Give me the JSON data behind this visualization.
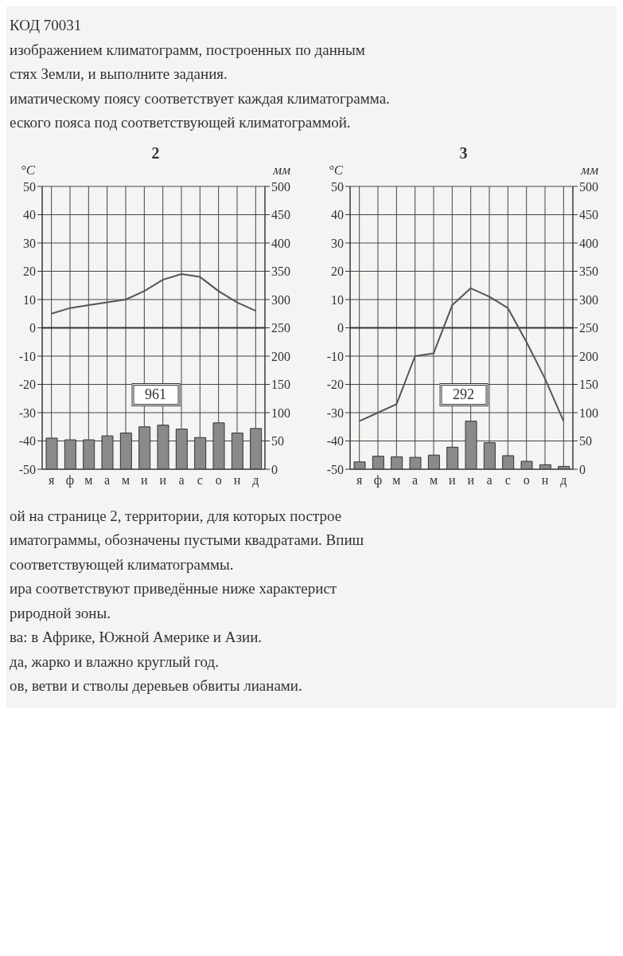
{
  "chart_data": [
    {
      "type": "other",
      "annotations": [
        "КОД 70031",
        "изображением климатограмм, построенных по данным",
        "стях Земли, и выполните задания.",
        "иматическому поясу соответствует каждая климатограмма.",
        "еского пояса под соответствующей климатограммой."
      ]
    },
    {
      "type": "bar",
      "title": "2",
      "ylabel": "°C",
      "y2label": "мм",
      "categories": [
        "я",
        "ф",
        "м",
        "а",
        "м",
        "и",
        "и",
        "а",
        "с",
        "о",
        "н",
        "д"
      ],
      "series": [
        {
          "type": "bar",
          "axis": "y2",
          "color": "#8a8a8a",
          "values": [
            55,
            52,
            52,
            59,
            64,
            75,
            78,
            71,
            56,
            82,
            64,
            72
          ]
        },
        {
          "type": "line",
          "color": "#555555",
          "values": [
            5,
            7,
            8,
            9,
            10,
            13,
            17,
            19,
            18,
            13,
            9,
            6
          ]
        }
      ],
      "ylim": [
        -50,
        50
      ],
      "yticks": [
        -50,
        -40,
        -30,
        -20,
        -10,
        0,
        10,
        20,
        30,
        40,
        50
      ],
      "y2lim": [
        0,
        500
      ],
      "y2ticks": [
        0,
        50,
        100,
        150,
        200,
        250,
        300,
        350,
        400,
        450,
        500
      ],
      "ref_lines": [
        {
          "axis": "y",
          "value": 0
        }
      ],
      "grid": true,
      "annotations": [
        "961"
      ]
    },
    {
      "type": "bar",
      "title": "3",
      "ylabel": "°C",
      "y2label": "мм",
      "categories": [
        "я",
        "ф",
        "м",
        "а",
        "м",
        "и",
        "и",
        "а",
        "с",
        "о",
        "н",
        "д"
      ],
      "series": [
        {
          "type": "bar",
          "axis": "y2",
          "color": "#8a8a8a",
          "values": [
            13,
            23,
            22,
            21,
            25,
            39,
            85,
            47,
            24,
            14,
            8,
            5
          ]
        },
        {
          "type": "line",
          "color": "#555555",
          "values": [
            -33,
            -30,
            -27,
            -10,
            -9,
            8,
            14,
            11,
            7,
            -5,
            -18,
            -33
          ]
        }
      ],
      "ylim": [
        -50,
        50
      ],
      "yticks": [
        -50,
        -40,
        -30,
        -20,
        -10,
        0,
        10,
        20,
        30,
        40,
        50
      ],
      "y2lim": [
        0,
        500
      ],
      "y2ticks": [
        0,
        50,
        100,
        150,
        200,
        250,
        300,
        350,
        400,
        450,
        500
      ],
      "ref_lines": [
        {
          "axis": "y",
          "value": 0
        }
      ],
      "grid": true,
      "annotations": [
        "292"
      ]
    },
    {
      "type": "other",
      "annotations": [
        "ой на странице 2, территории, для которых построе",
        "иматограммы, обозначены пустыми квадратами. Впиш",
        "соответствующей климатограммы.",
        "ира соответствуют приведённые ниже характерист",
        "риродной зоны.",
        "ва: в Африке, Южной Америке и Азии.",
        "да, жарко и влажно круглый год.",
        "ов, ветви и стволы деревьев обвиты лианами."
      ]
    }
  ]
}
